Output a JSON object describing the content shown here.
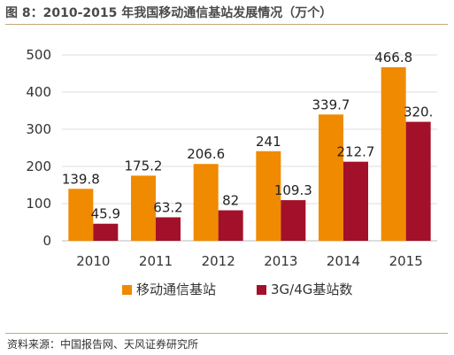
{
  "title": "图 8：2010-2015 年我国移动通信基站发展情况（万个）",
  "source": "资料来源：中国报告网、天风证券研究所",
  "chart_data": {
    "type": "bar",
    "title": "图 8：2010-2015 年我国移动通信基站发展情况（万个）",
    "xlabel": "",
    "ylabel": "",
    "ylim": [
      0,
      500
    ],
    "yticks": [
      "0",
      "100",
      "200",
      "300",
      "400",
      "500"
    ],
    "categories": [
      "2010",
      "2011",
      "2012",
      "2013",
      "2014",
      "2015"
    ],
    "grid": true,
    "legend_position": "bottom",
    "series": [
      {
        "name": "移动通信基站",
        "color": "#F08A00",
        "values": [
          139.8,
          175.2,
          206.6,
          241,
          339.7,
          466.8
        ],
        "labels": [
          "139.8",
          "175.2",
          "206.6",
          "241",
          "339.7",
          "466.8"
        ]
      },
      {
        "name": "3G/4G基站数",
        "color": "#A3102A",
        "values": [
          45.9,
          63.2,
          82,
          109.3,
          212.7,
          320
        ],
        "labels": [
          "45.9",
          "63.2",
          "82",
          "109.3",
          "212.7",
          "320."
        ]
      }
    ]
  }
}
